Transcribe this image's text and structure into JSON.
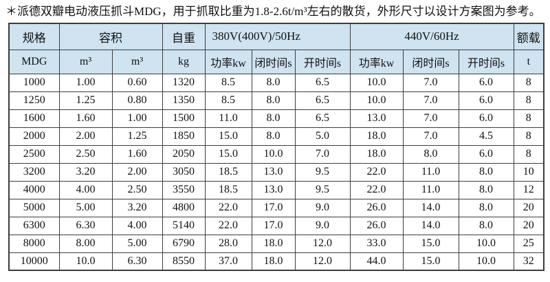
{
  "title": "＊派德双瓣电动液压抓斗MDG，用于抓取比重为1.8-2.6t/m³左右的散货，外形尺寸以设计方案图为参考。",
  "colors": {
    "header_bg": "#cfe3f0",
    "border": "#3c3c3c",
    "text": "#111111",
    "page_bg": "#ffffff"
  },
  "table": {
    "header_row1": [
      {
        "label": "规格",
        "colspan": 1,
        "align": "center"
      },
      {
        "label": "容积",
        "colspan": 2,
        "align": "center"
      },
      {
        "label": "自重",
        "colspan": 1,
        "align": "center"
      },
      {
        "label": "380V(400V)/50Hz",
        "colspan": 3,
        "align": "left"
      },
      {
        "label": "440V/60Hz",
        "colspan": 3,
        "align": "center"
      },
      {
        "label": "额载",
        "colspan": 1,
        "align": "center"
      }
    ],
    "header_row2": [
      "MDG",
      "m³",
      "m³",
      "kg",
      "功率kw",
      "闭时间s",
      "开时间s",
      "功率kw",
      "闭时间s",
      "开时间s",
      "t"
    ],
    "rows": [
      [
        "1000",
        "1.00",
        "0.60",
        "1320",
        "8.5",
        "8.0",
        "6.5",
        "10.0",
        "7.0",
        "6.0",
        "8"
      ],
      [
        "1250",
        "1.25",
        "0.80",
        "1350",
        "8.5",
        "8.0",
        "6.5",
        "10.0",
        "7.0",
        "6.0",
        "8"
      ],
      [
        "1600",
        "1.60",
        "1.00",
        "1500",
        "11.0",
        "8.0",
        "6.5",
        "13.0",
        "7.0",
        "6.0",
        "8"
      ],
      [
        "2000",
        "2.00",
        "1.25",
        "1850",
        "15.0",
        "8.0",
        "5.0",
        "18.0",
        "7.0",
        "4.5",
        "8"
      ],
      [
        "2500",
        "2.50",
        "1.60",
        "2050",
        "15.0",
        "10.0",
        "7.0",
        "18.0",
        "8.0",
        "6.0",
        "8"
      ],
      [
        "3200",
        "3.20",
        "2.00",
        "3050",
        "18.5",
        "13.0",
        "9.5",
        "22.0",
        "11.0",
        "8.0",
        "10"
      ],
      [
        "4000",
        "4.00",
        "2.50",
        "3550",
        "18.5",
        "13.0",
        "9.5",
        "22.0",
        "11.0",
        "8.0",
        "12"
      ],
      [
        "5000",
        "5.00",
        "3.20",
        "4800",
        "22.0",
        "17.0",
        "9.0",
        "26.0",
        "14.0",
        "8.0",
        "20"
      ],
      [
        "6300",
        "6.30",
        "4.00",
        "5140",
        "22.0",
        "17.0",
        "9.0",
        "26.0",
        "14.0",
        "8.0",
        "20"
      ],
      [
        "8000",
        "8.00",
        "5.00",
        "6790",
        "28.0",
        "18.0",
        "12.0",
        "33.0",
        "15.0",
        "10.0",
        "25"
      ],
      [
        "10000",
        "10.0",
        "6.30",
        "8550",
        "37.0",
        "18.0",
        "12.0",
        "44.0",
        "15.0",
        "10.0",
        "32"
      ]
    ]
  }
}
